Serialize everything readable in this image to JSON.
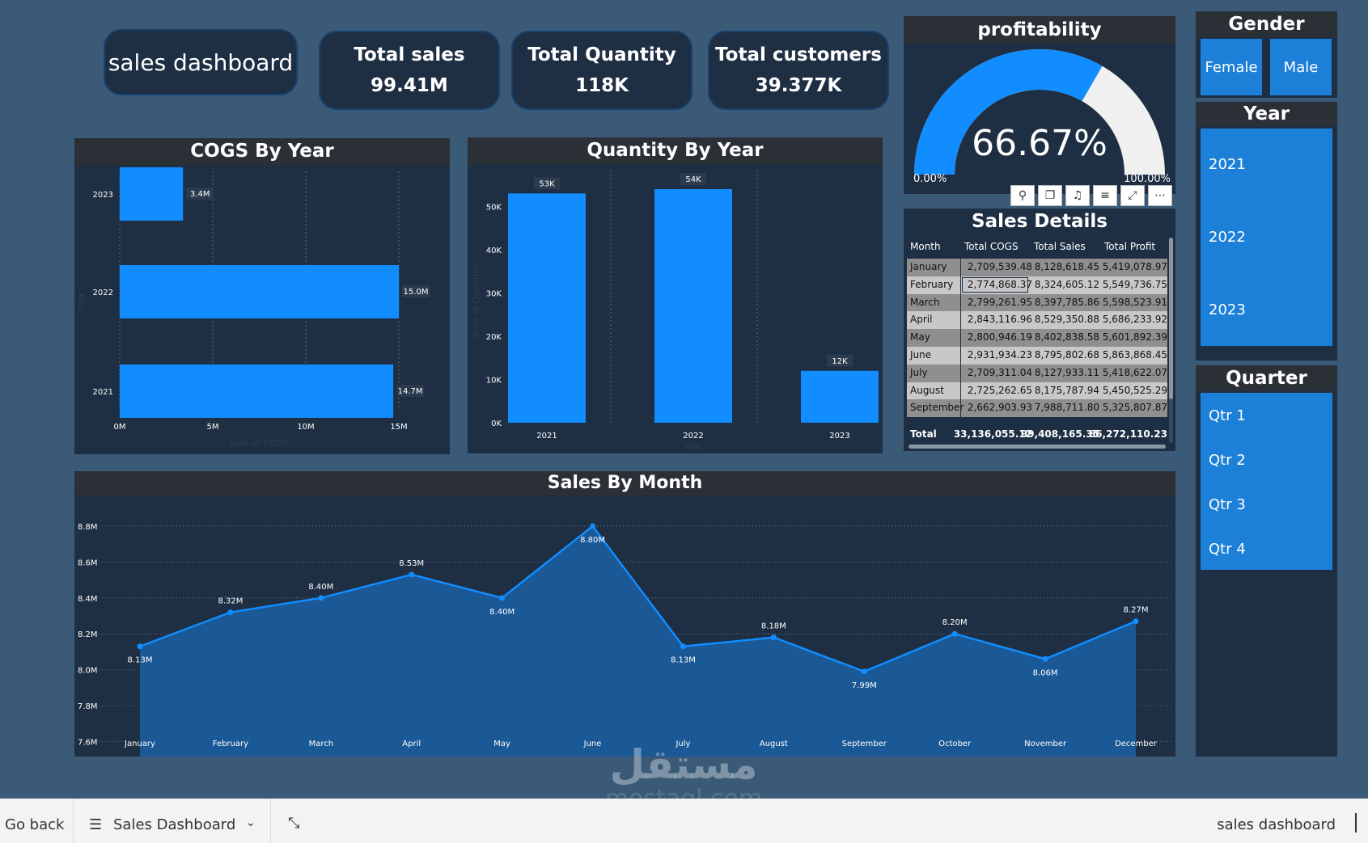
{
  "header": {
    "dashboard_title": "sales dashboard",
    "kpis": [
      {
        "title": "Total sales",
        "value": "99.41M"
      },
      {
        "title": "Total Quantity",
        "value": "118K"
      },
      {
        "title": "Total customers",
        "value": "39.377K"
      }
    ]
  },
  "gauge": {
    "title": "profitability",
    "value": 66.67,
    "value_label": "66.67%",
    "min_label": "0.00%",
    "max_label": "100.00%",
    "fill_color": "#118dff",
    "track_color": "#f0f0f0"
  },
  "visual_toolbar": {
    "icons": [
      "pin-icon",
      "copy-icon",
      "bell-icon",
      "filter-icon",
      "focus-icon",
      "more-icon"
    ],
    "glyphs": [
      "⚲",
      "❐",
      "♫",
      "≡",
      "⤢",
      "⋯"
    ]
  },
  "cogs_chart": {
    "title": "COGS By Year",
    "chart_data": {
      "type": "bar",
      "orientation": "horizontal",
      "categories": [
        "2023",
        "2022",
        "2021"
      ],
      "values": [
        3.4,
        15.0,
        14.7
      ],
      "data_labels": [
        "3.4M",
        "15.0M",
        "14.7M"
      ],
      "xticks": [
        "0M",
        "5M",
        "10M",
        "15M"
      ],
      "xlim": [
        0,
        15
      ],
      "xlabel": "Sum of COGS",
      "ylabel": "Year",
      "color": "#118dff"
    }
  },
  "quantity_chart": {
    "title": "Quantity By Year",
    "chart_data": {
      "type": "bar",
      "categories": [
        "2021",
        "2022",
        "2023"
      ],
      "values": [
        53,
        54,
        12
      ],
      "data_labels": [
        "53K",
        "54K",
        "12K"
      ],
      "yticks": [
        "0K",
        "10K",
        "20K",
        "30K",
        "40K",
        "50K"
      ],
      "ylim": [
        0,
        54
      ],
      "xlabel": "Year",
      "ylabel": "Sum of Quantity",
      "color": "#118dff"
    }
  },
  "sales_details": {
    "title": "Sales Details",
    "columns": [
      "Month",
      "Total COGS",
      "Total Sales",
      "Total Profit"
    ],
    "rows": [
      [
        "January",
        "2,709,539.48",
        "8,128,618.45",
        "5,419,078.97"
      ],
      [
        "February",
        "2,774,868.37",
        "8,324,605.12",
        "5,549,736.75"
      ],
      [
        "March",
        "2,799,261.95",
        "8,397,785.86",
        "5,598,523.91"
      ],
      [
        "April",
        "2,843,116.96",
        "8,529,350.88",
        "5,686,233.92"
      ],
      [
        "May",
        "2,800,946.19",
        "8,402,838.58",
        "5,601,892.39"
      ],
      [
        "June",
        "2,931,934.23",
        "8,795,802.68",
        "5,863,868.45"
      ],
      [
        "July",
        "2,709,311.04",
        "8,127,933.11",
        "5,418,622.07"
      ],
      [
        "August",
        "2,725,262.65",
        "8,175,787.94",
        "5,450,525.29"
      ],
      [
        "September",
        "2,662,903.93",
        "7,988,711.80",
        "5,325,807.87"
      ]
    ],
    "total": [
      "Total",
      "33,136,055.12",
      "99,408,165.35",
      "66,272,110.23"
    ]
  },
  "sales_by_month": {
    "title": "Sales By Month",
    "chart_data": {
      "type": "area",
      "categories": [
        "January",
        "February",
        "March",
        "April",
        "May",
        "June",
        "July",
        "August",
        "September",
        "October",
        "November",
        "December"
      ],
      "values": [
        8.13,
        8.32,
        8.4,
        8.53,
        8.4,
        8.8,
        8.13,
        8.18,
        7.99,
        8.2,
        8.06,
        8.27
      ],
      "data_labels": [
        "8.13M",
        "8.32M",
        "8.40M",
        "8.53M",
        "8.40M",
        "8.80M",
        "8.13M",
        "8.18M",
        "7.99M",
        "8.20M",
        "8.06M",
        "8.27M"
      ],
      "label_pos": [
        "below",
        "above",
        "above",
        "above",
        "below",
        "below",
        "below",
        "above",
        "below",
        "above",
        "below",
        "above"
      ],
      "yticks": [
        7.6,
        7.8,
        8.0,
        8.2,
        8.4,
        8.6,
        8.8
      ],
      "ytick_labels": [
        "7.6M",
        "7.8M",
        "8.0M",
        "8.2M",
        "8.4M",
        "8.6M",
        "8.8M"
      ],
      "ylim": [
        7.5,
        8.8
      ],
      "grid": true,
      "line_color": "#118dff",
      "fill_color": "#1a5896"
    }
  },
  "slicers": {
    "gender": {
      "title": "Gender",
      "items": [
        "Female",
        "Male"
      ]
    },
    "year": {
      "title": "Year",
      "items": [
        "2021",
        "2022",
        "2023"
      ]
    },
    "quarter": {
      "title": "Quarter",
      "items": [
        "Qtr 1",
        "Qtr 2",
        "Qtr 3",
        "Qtr 4"
      ]
    }
  },
  "bottom_bar": {
    "go_back": "Go back",
    "page_name": "Sales Dashboard",
    "right_label": "sales dashboard"
  },
  "watermark": {
    "text_ar": "مستقل",
    "text_en": "mostaql.com"
  }
}
